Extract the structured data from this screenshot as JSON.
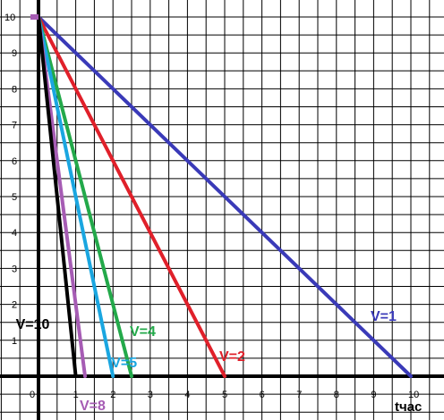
{
  "chart_data": {
    "type": "line",
    "title": "",
    "xlabel": "tчас",
    "ylabel": "",
    "xlim": [
      0,
      11
    ],
    "ylim": [
      -1,
      10.8
    ],
    "grid": true,
    "x_ticks": [
      "0",
      "1",
      "2",
      "3",
      "4",
      "5",
      "6",
      "7",
      "8",
      "9",
      "10"
    ],
    "y_ticks": [
      "1",
      "2",
      "3",
      "4",
      "5",
      "6",
      "7",
      "8",
      "9",
      "10"
    ],
    "series": [
      {
        "name": "V=1",
        "color": "#3a3ab8",
        "x": [
          0,
          10
        ],
        "y": [
          10,
          0
        ]
      },
      {
        "name": "V=2",
        "color": "#e0202a",
        "x": [
          0,
          5
        ],
        "y": [
          10,
          0
        ]
      },
      {
        "name": "V=4",
        "color": "#23a94a",
        "x": [
          0,
          2.5
        ],
        "y": [
          10,
          0
        ]
      },
      {
        "name": "V=5",
        "color": "#1aa6e0",
        "x": [
          0,
          2
        ],
        "y": [
          10,
          0
        ]
      },
      {
        "name": "V=8",
        "color": "#a65cb4",
        "x": [
          0,
          1.25
        ],
        "y": [
          10,
          0
        ]
      },
      {
        "name": "V=10",
        "color": "#000000",
        "x": [
          0,
          1
        ],
        "y": [
          10,
          0
        ]
      }
    ]
  }
}
